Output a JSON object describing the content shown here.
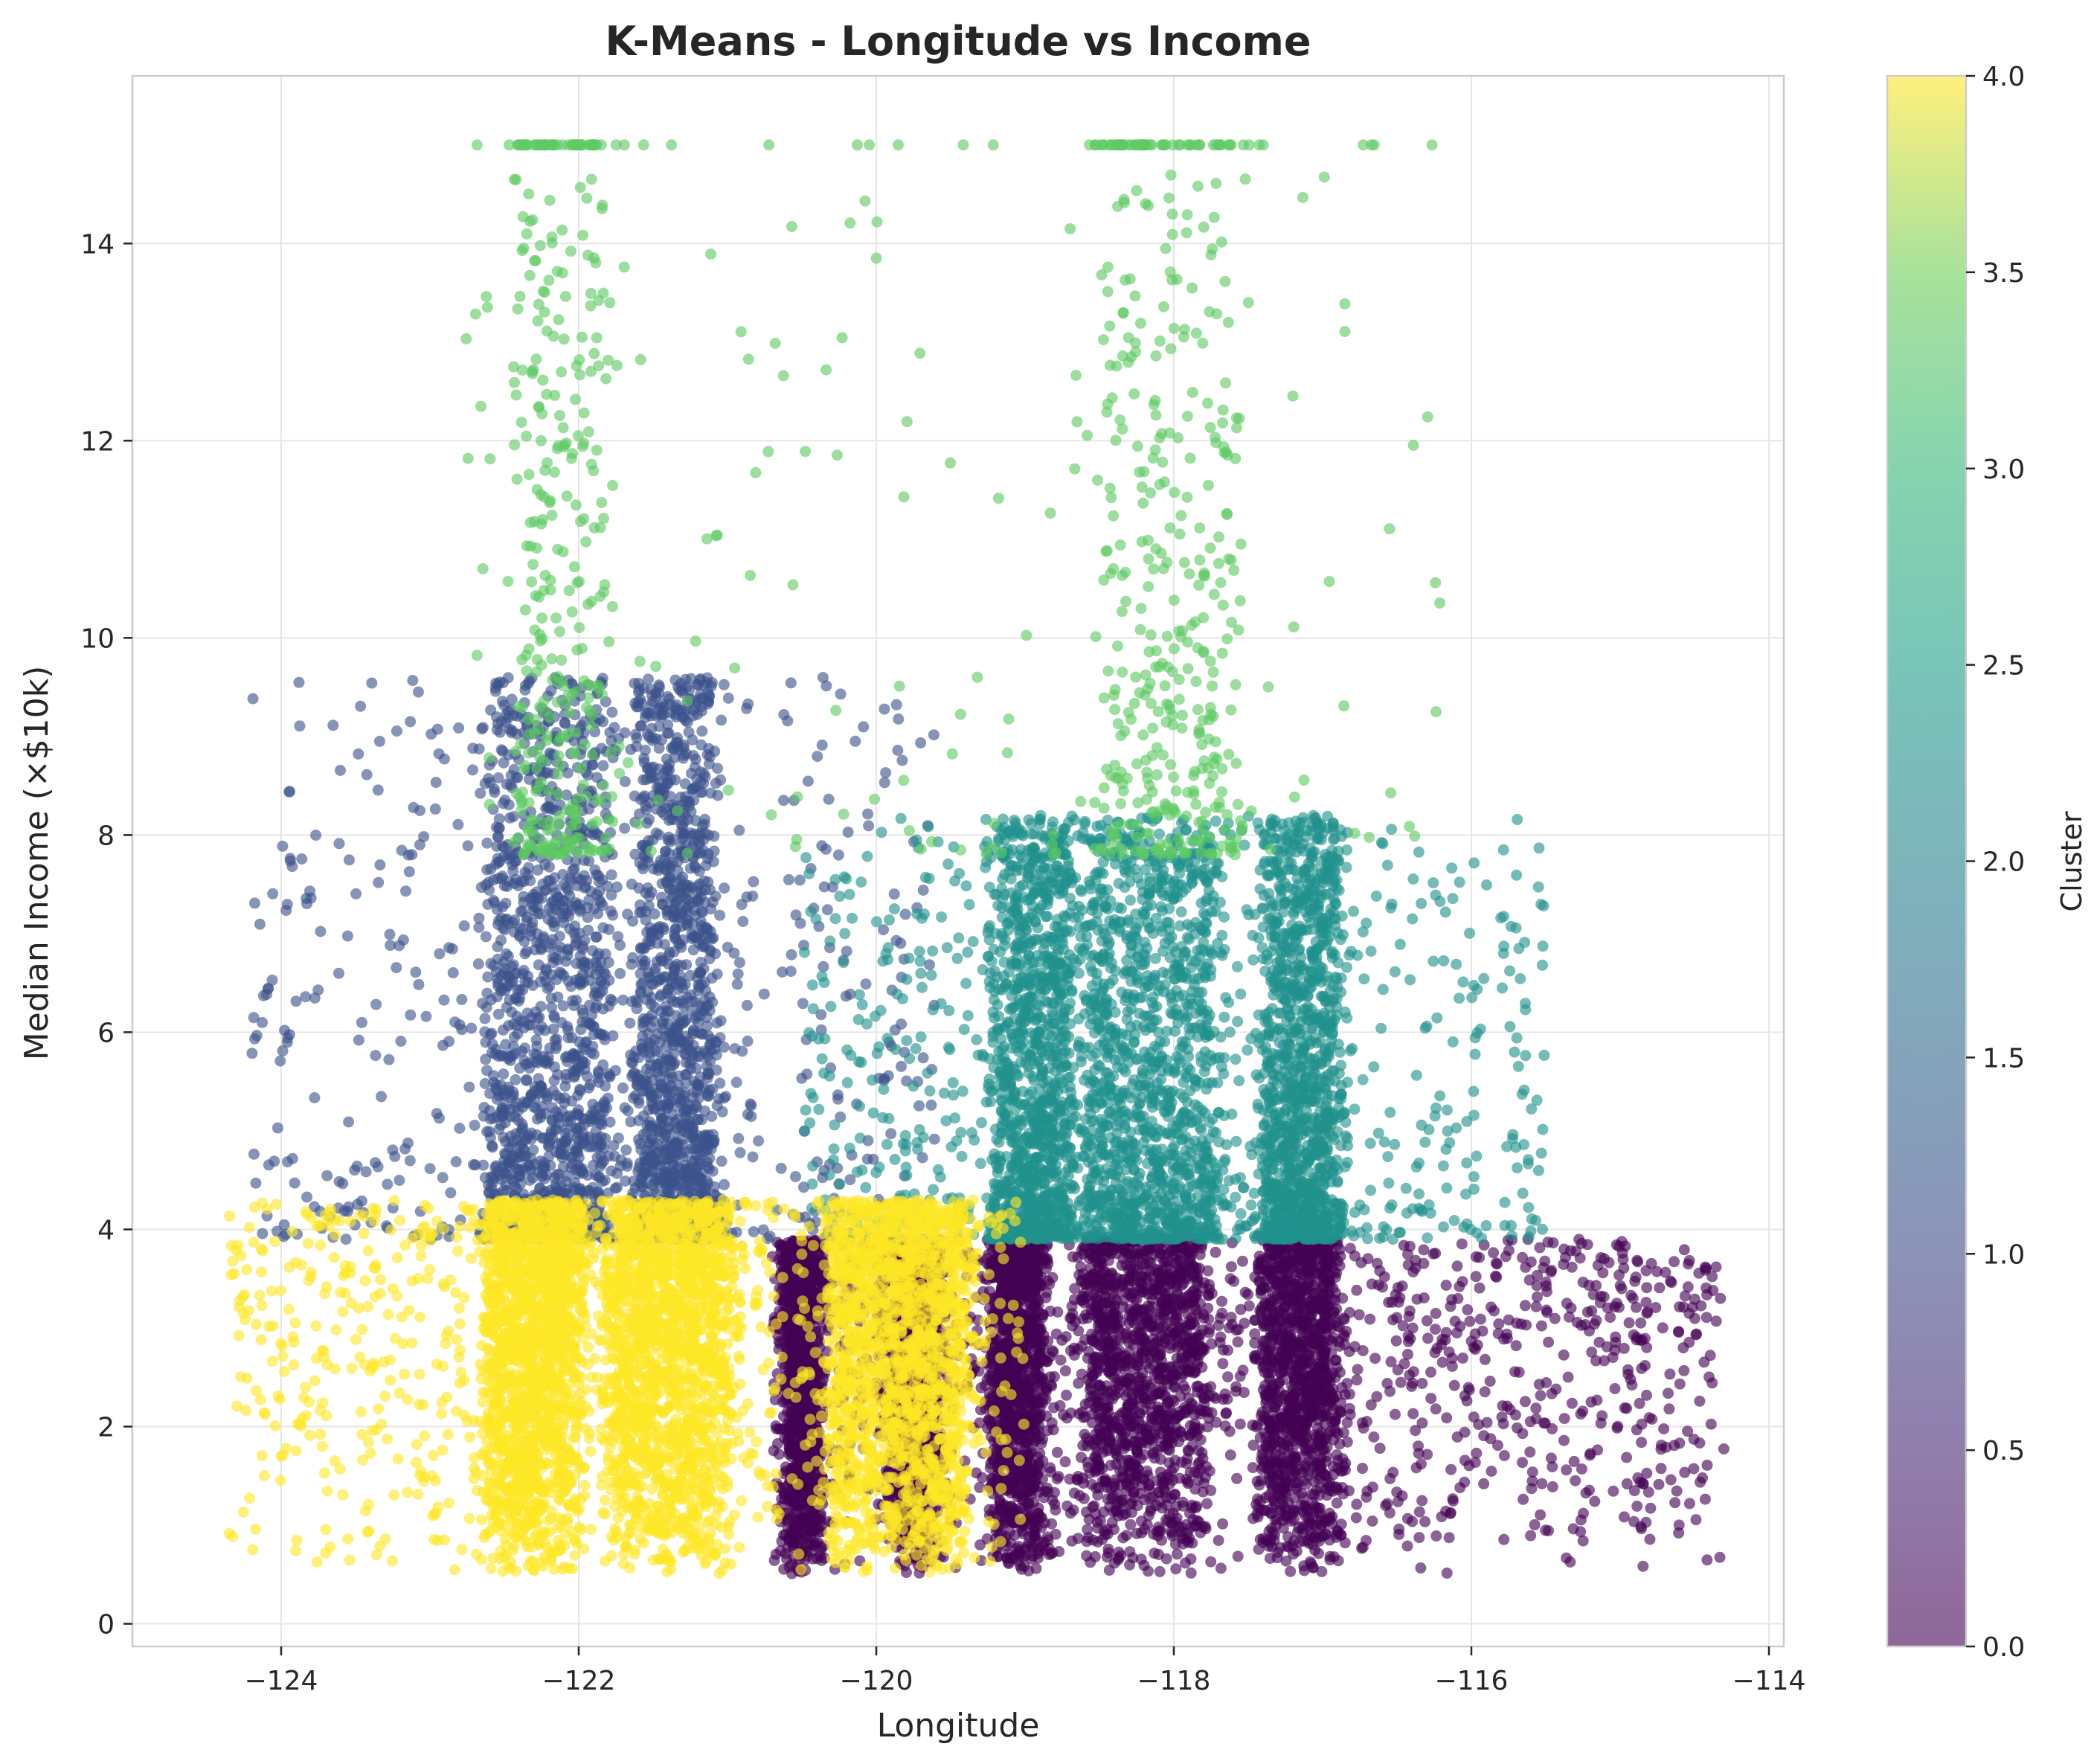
{
  "chart_data": {
    "type": "scatter",
    "title": "K-Means - Longitude vs Income",
    "xlabel": "Longitude",
    "ylabel": "Median Income (×$10k)",
    "xlim": [
      -125,
      -113.9
    ],
    "ylim": [
      -0.23,
      15.7
    ],
    "x_ticks": [
      -124,
      -122,
      -120,
      -118,
      -116,
      -114
    ],
    "x_tick_labels": [
      "−124",
      "−122",
      "−120",
      "−118",
      "−116",
      "−114"
    ],
    "y_ticks": [
      0,
      2,
      4,
      6,
      8,
      10,
      12,
      14
    ],
    "y_tick_labels": [
      "0",
      "2",
      "4",
      "6",
      "8",
      "10",
      "12",
      "14"
    ],
    "grid": true,
    "colorbar": {
      "label": "Cluster",
      "min": 0.0,
      "max": 4.0,
      "colormap": "viridis",
      "ticks": [
        0.0,
        0.5,
        1.0,
        1.5,
        2.0,
        2.5,
        3.0,
        3.5,
        4.0
      ],
      "tick_labels": [
        "0.0",
        "0.5",
        "1.0",
        "1.5",
        "2.0",
        "2.5",
        "3.0",
        "3.5",
        "4.0"
      ]
    },
    "series": [
      {
        "cluster": 0,
        "color": "#440154",
        "x_range": [
          -120.7,
          -114.3
        ],
        "y_range": [
          0.5,
          3.9
        ],
        "dense_bands": [
          [
            -119.2,
            -118.9
          ],
          [
            -118.6,
            -117.8
          ],
          [
            -117.4,
            -116.9
          ],
          [
            -120.6,
            -120.4
          ],
          [
            -119.9,
            -119.6
          ]
        ],
        "approx_points": 6800
      },
      {
        "cluster": 1,
        "color": "#3b528b",
        "x_range": [
          -124.2,
          -119.6
        ],
        "y_range": [
          3.9,
          9.6
        ],
        "dense_bands": [
          [
            -122.6,
            -121.8
          ],
          [
            -121.6,
            -121.1
          ]
        ],
        "approx_points": 3100
      },
      {
        "cluster": 2,
        "color": "#21918c",
        "x_range": [
          -120.5,
          -115.5
        ],
        "y_range": [
          3.9,
          8.2
        ],
        "dense_bands": [
          [
            -118.6,
            -117.7
          ],
          [
            -117.4,
            -116.9
          ],
          [
            -119.2,
            -118.7
          ]
        ],
        "approx_points": 4300
      },
      {
        "cluster": 3,
        "color": "#5ec962",
        "x_range": [
          -122.8,
          -116.2
        ],
        "y_range": [
          7.8,
          15.0
        ],
        "dense_bands": [
          [
            -122.4,
            -121.8
          ],
          [
            -118.5,
            -117.6
          ]
        ],
        "approx_points": 900
      },
      {
        "cluster": 4,
        "color": "#fde725",
        "x_range": [
          -124.35,
          -119.0
        ],
        "y_range": [
          0.5,
          4.3
        ],
        "dense_bands": [
          [
            -122.6,
            -122.0
          ],
          [
            -121.8,
            -121.0
          ],
          [
            -120.3,
            -119.4
          ]
        ],
        "approx_points": 5700
      }
    ]
  }
}
